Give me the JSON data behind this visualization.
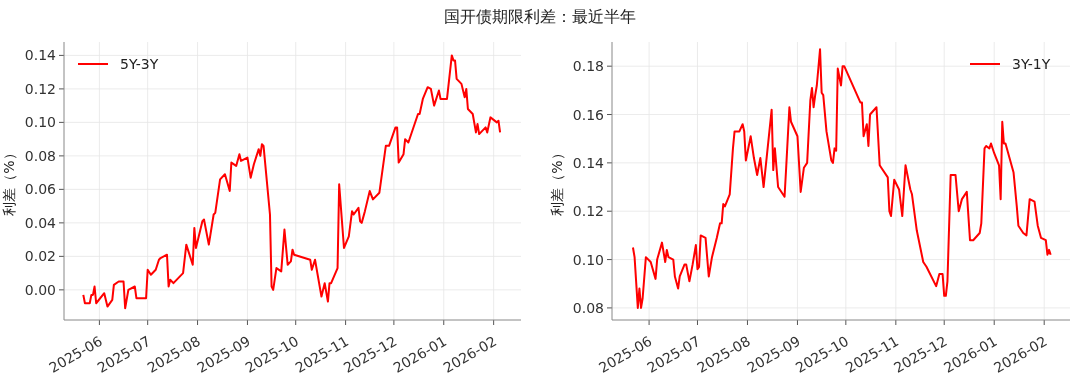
{
  "chart_data": [
    {
      "type": "line",
      "title": "国开债期限利差：最近半年",
      "ylabel": "利差（%）",
      "grid": true,
      "legend": "top left",
      "xlim": [
        "2025-05-10",
        "2026-02-18"
      ],
      "ylim": [
        -0.018,
        0.148
      ],
      "xticks": [
        "2025-06",
        "2025-07",
        "2025-08",
        "2025-09",
        "2025-10",
        "2025-11",
        "2025-12",
        "2026-01",
        "2026-02"
      ],
      "yticks": [
        {
          "value": 0,
          "label": "0.00"
        },
        {
          "value": 0.02,
          "label": "0.02"
        },
        {
          "value": 0.04,
          "label": "0.04"
        },
        {
          "value": 0.06,
          "label": "0.06"
        },
        {
          "value": 0.08,
          "label": "0.08"
        },
        {
          "value": 0.1,
          "label": "0.10"
        },
        {
          "value": 0.12,
          "label": "0.12"
        },
        {
          "value": 0.14,
          "label": "0.14"
        }
      ],
      "series": [
        {
          "name": "5Y-3Y",
          "color": "#ff0000",
          "x": [
            "2025-05-22",
            "2025-05-23",
            "2025-05-26",
            "2025-05-27",
            "2025-05-28",
            "2025-05-29",
            "2025-05-30",
            "2025-06-04",
            "2025-06-06",
            "2025-06-09",
            "2025-06-10",
            "2025-06-13",
            "2025-06-16",
            "2025-06-17",
            "2025-06-19",
            "2025-06-23",
            "2025-06-24",
            "2025-06-30",
            "2025-07-01",
            "2025-07-03",
            "2025-07-06",
            "2025-07-08",
            "2025-07-09",
            "2025-07-13",
            "2025-07-14",
            "2025-07-15",
            "2025-07-17",
            "2025-07-23",
            "2025-07-25",
            "2025-07-29",
            "2025-07-30",
            "2025-07-31",
            "2025-08-04",
            "2025-08-05",
            "2025-08-08",
            "2025-08-11",
            "2025-08-12",
            "2025-08-15",
            "2025-08-18",
            "2025-08-21",
            "2025-08-22",
            "2025-08-25",
            "2025-08-27",
            "2025-08-28",
            "2025-09-01",
            "2025-09-03",
            "2025-09-05",
            "2025-09-08",
            "2025-09-09",
            "2025-09-10",
            "2025-09-11",
            "2025-09-15",
            "2025-09-16",
            "2025-09-17",
            "2025-09-19",
            "2025-09-22",
            "2025-09-24",
            "2025-09-26",
            "2025-09-28",
            "2025-09-29",
            "2025-09-30",
            "2025-10-10",
            "2025-10-11",
            "2025-10-13",
            "2025-10-17",
            "2025-10-19",
            "2025-10-21",
            "2025-10-22",
            "2025-10-23",
            "2025-10-27",
            "2025-10-28",
            "2025-10-31",
            "2025-11-03",
            "2025-11-05",
            "2025-11-06",
            "2025-11-09",
            "2025-11-10",
            "2025-11-11",
            "2025-11-13",
            "2025-11-16",
            "2025-11-18",
            "2025-11-22",
            "2025-11-26",
            "2025-11-28",
            "2025-12-02",
            "2025-12-03",
            "2025-12-04",
            "2025-12-07",
            "2025-12-08",
            "2025-12-10",
            "2025-12-16",
            "2025-12-17",
            "2025-12-19",
            "2025-12-22",
            "2025-12-24",
            "2025-12-26",
            "2025-12-29",
            "2025-12-30",
            "2026-01-03",
            "2026-01-06",
            "2026-01-07",
            "2026-01-08",
            "2026-01-09",
            "2026-01-12",
            "2026-01-14",
            "2026-01-15",
            "2026-01-16",
            "2026-01-19",
            "2026-01-21",
            "2026-01-22",
            "2026-01-23",
            "2026-01-27",
            "2026-01-28",
            "2026-01-30",
            "2026-02-03",
            "2026-02-04",
            "2026-02-05"
          ],
          "values": [
            -0.003,
            -0.008,
            -0.008,
            -0.003,
            -0.003,
            0.002,
            -0.008,
            -0.002,
            -0.01,
            -0.006,
            0.003,
            0.005,
            0.005,
            -0.011,
            0.0,
            0.002,
            -0.005,
            -0.005,
            0.012,
            0.009,
            0.012,
            0.018,
            0.019,
            0.021,
            0.002,
            0.006,
            0.004,
            0.01,
            0.027,
            0.015,
            0.037,
            0.025,
            0.041,
            0.042,
            0.027,
            0.045,
            0.046,
            0.066,
            0.069,
            0.059,
            0.076,
            0.074,
            0.081,
            0.077,
            0.079,
            0.067,
            0.075,
            0.084,
            0.08,
            0.087,
            0.086,
            0.045,
            0.002,
            0.0,
            0.013,
            0.011,
            0.036,
            0.015,
            0.017,
            0.024,
            0.021,
            0.018,
            0.012,
            0.018,
            -0.004,
            0.004,
            -0.007,
            0.004,
            0.004,
            0.013,
            0.063,
            0.025,
            0.032,
            0.047,
            0.045,
            0.049,
            0.041,
            0.04,
            0.047,
            0.059,
            0.054,
            0.058,
            0.086,
            0.086,
            0.097,
            0.097,
            0.076,
            0.081,
            0.09,
            0.088,
            0.105,
            0.105,
            0.114,
            0.121,
            0.12,
            0.11,
            0.119,
            0.114,
            0.114,
            0.14,
            0.137,
            0.137,
            0.126,
            0.123,
            0.115,
            0.12,
            0.108,
            0.105,
            0.094,
            0.099,
            0.093,
            0.097,
            0.094,
            0.103,
            0.1,
            0.101,
            0.094
          ]
        }
      ]
    },
    {
      "type": "line",
      "ylabel": "利差（%）",
      "grid": true,
      "legend": "top right",
      "xlim": [
        "2025-05-09",
        "2026-02-17"
      ],
      "ylim": [
        0.075,
        0.19
      ],
      "xticks": [
        "2025-06",
        "2025-07",
        "2025-08",
        "2025-09",
        "2025-10",
        "2025-11",
        "2025-12",
        "2026-01",
        "2026-02"
      ],
      "yticks": [
        {
          "value": 0.08,
          "label": "0.08"
        },
        {
          "value": 0.1,
          "label": "0.10"
        },
        {
          "value": 0.12,
          "label": "0.12"
        },
        {
          "value": 0.14,
          "label": "0.14"
        },
        {
          "value": 0.16,
          "label": "0.16"
        },
        {
          "value": 0.18,
          "label": "0.18"
        }
      ],
      "series": [
        {
          "name": "3Y-1Y",
          "color": "#ff0000",
          "x": [
            "2025-05-22",
            "2025-05-23",
            "2025-05-25",
            "2025-05-26",
            "2025-05-27",
            "2025-05-28",
            "2025-05-30",
            "2025-06-02",
            "2025-06-05",
            "2025-06-06",
            "2025-06-09",
            "2025-06-11",
            "2025-06-12",
            "2025-06-13",
            "2025-06-16",
            "2025-06-17",
            "2025-06-19",
            "2025-06-20",
            "2025-06-23",
            "2025-06-24",
            "2025-06-26",
            "2025-06-28",
            "2025-06-30",
            "2025-07-01",
            "2025-07-02",
            "2025-07-03",
            "2025-07-06",
            "2025-07-08",
            "2025-07-10",
            "2025-07-13",
            "2025-07-15",
            "2025-07-16",
            "2025-07-17",
            "2025-07-18",
            "2025-07-21",
            "2025-07-23",
            "2025-07-24",
            "2025-07-27",
            "2025-07-29",
            "2025-07-30",
            "2025-07-31",
            "2025-08-03",
            "2025-08-05",
            "2025-08-07",
            "2025-08-09",
            "2025-08-11",
            "2025-08-16",
            "2025-08-17",
            "2025-08-18",
            "2025-08-20",
            "2025-08-24",
            "2025-08-25",
            "2025-08-27",
            "2025-08-28",
            "2025-09-01",
            "2025-09-03",
            "2025-09-05",
            "2025-09-07",
            "2025-09-09",
            "2025-09-10",
            "2025-09-11",
            "2025-09-12",
            "2025-09-13",
            "2025-09-15",
            "2025-09-16",
            "2025-09-17",
            "2025-09-19",
            "2025-09-22",
            "2025-09-23",
            "2025-09-24",
            "2025-09-25",
            "2025-09-26",
            "2025-09-28",
            "2025-09-29",
            "2025-09-30",
            "2025-10-10",
            "2025-10-11",
            "2025-10-12",
            "2025-10-14",
            "2025-10-15",
            "2025-10-16",
            "2025-10-20",
            "2025-10-22",
            "2025-10-23",
            "2025-10-27",
            "2025-10-28",
            "2025-10-29",
            "2025-10-31",
            "2025-11-03",
            "2025-11-05",
            "2025-11-07",
            "2025-11-10",
            "2025-11-11",
            "2025-11-14",
            "2025-11-18",
            "2025-11-20",
            "2025-11-26",
            "2025-11-28",
            "2025-11-30",
            "2025-12-01",
            "2025-12-02",
            "2025-12-03",
            "2025-12-05",
            "2025-12-08",
            "2025-12-10",
            "2025-12-12",
            "2025-12-15",
            "2025-12-17",
            "2025-12-19",
            "2025-12-23",
            "2025-12-24",
            "2025-12-26",
            "2025-12-27",
            "2025-12-29",
            "2025-12-30",
            "2026-01-01",
            "2026-01-04",
            "2026-01-05",
            "2026-01-06",
            "2026-01-07",
            "2026-01-08",
            "2026-01-13",
            "2026-01-15",
            "2026-01-16",
            "2026-01-19",
            "2026-01-21",
            "2026-01-23",
            "2026-01-26",
            "2026-01-28",
            "2026-01-30",
            "2026-02-02",
            "2026-02-03",
            "2026-02-04",
            "2026-02-05"
          ],
          "values": [
            0.105,
            0.101,
            0.08,
            0.088,
            0.08,
            0.084,
            0.101,
            0.099,
            0.092,
            0.1,
            0.107,
            0.099,
            0.104,
            0.101,
            0.1,
            0.093,
            0.088,
            0.093,
            0.098,
            0.098,
            0.091,
            0.098,
            0.106,
            0.096,
            0.097,
            0.11,
            0.109,
            0.093,
            0.101,
            0.109,
            0.115,
            0.115,
            0.123,
            0.122,
            0.127,
            0.146,
            0.153,
            0.153,
            0.156,
            0.153,
            0.141,
            0.151,
            0.142,
            0.135,
            0.142,
            0.13,
            0.162,
            0.137,
            0.146,
            0.13,
            0.126,
            0.138,
            0.163,
            0.157,
            0.151,
            0.128,
            0.138,
            0.14,
            0.166,
            0.171,
            0.163,
            0.168,
            0.172,
            0.187,
            0.169,
            0.168,
            0.153,
            0.141,
            0.14,
            0.146,
            0.145,
            0.179,
            0.172,
            0.18,
            0.18,
            0.165,
            0.165,
            0.151,
            0.156,
            0.147,
            0.16,
            0.163,
            0.139,
            0.138,
            0.134,
            0.12,
            0.118,
            0.133,
            0.129,
            0.118,
            0.139,
            0.129,
            0.127,
            0.112,
            0.099,
            0.097,
            0.089,
            0.094,
            0.094,
            0.085,
            0.085,
            0.091,
            0.135,
            0.135,
            0.12,
            0.125,
            0.128,
            0.108,
            0.108,
            0.111,
            0.115,
            0.146,
            0.147,
            0.146,
            0.148,
            0.144,
            0.139,
            0.125,
            0.157,
            0.148,
            0.148,
            0.136,
            0.122,
            0.114,
            0.111,
            0.11,
            0.125,
            0.124,
            0.114,
            0.109,
            0.108,
            0.102,
            0.104,
            0.102
          ]
        }
      ]
    }
  ]
}
